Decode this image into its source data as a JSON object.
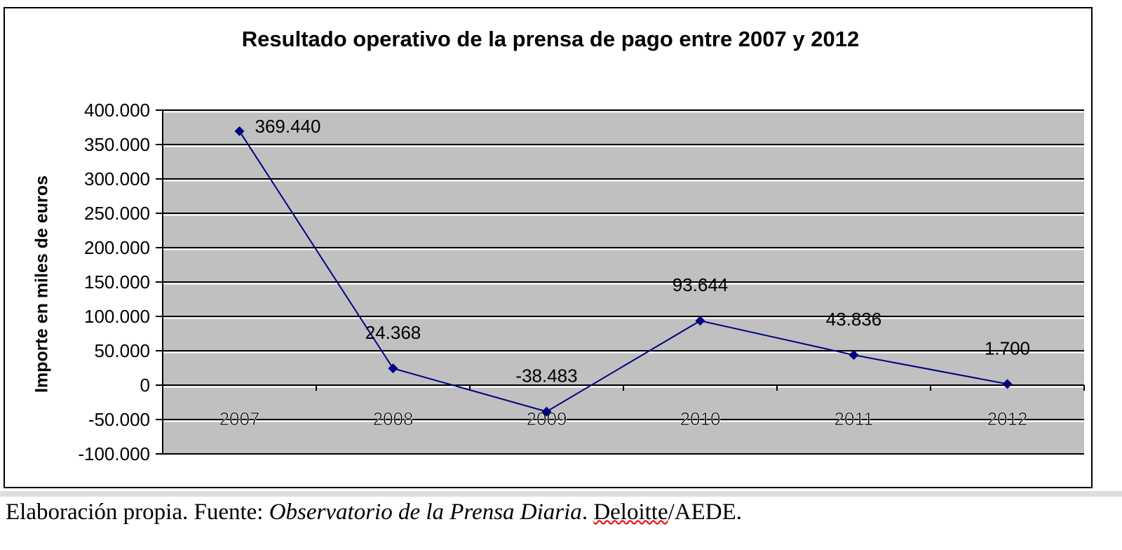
{
  "chart_data": {
    "type": "line",
    "title": "Resultado operativo de la prensa de pago entre 2007 y 2012",
    "xlabel": "",
    "ylabel": "Importe en miles de euros",
    "categories": [
      "2007",
      "2008",
      "2009",
      "2010",
      "2011",
      "2012"
    ],
    "series": [
      {
        "name": "Resultado operativo",
        "values": [
          369440,
          24368,
          -38483,
          93644,
          43836,
          1700
        ]
      }
    ],
    "data_labels": [
      "369.440",
      "24.368",
      "-38.483",
      "93.644",
      "43.836",
      "1.700"
    ],
    "ylim": [
      -100000,
      400000
    ],
    "yticks": [
      400000,
      350000,
      300000,
      250000,
      200000,
      150000,
      100000,
      50000,
      0,
      -50000,
      -100000
    ],
    "ytick_labels": [
      "400.000",
      "350.000",
      "300.000",
      "250.000",
      "200.000",
      "150.000",
      "100.000",
      "50.000",
      "0",
      "-50.000",
      "-100.000"
    ],
    "grid": true,
    "legend": "none",
    "colors": {
      "line": "#000080",
      "plot_bg": "#c0c0c0",
      "grid": "#000000"
    }
  },
  "caption": {
    "prefix": "Elaboración propia. Fuente: ",
    "source_italic": "Observatorio de la Prensa Diaria",
    "sep": ". ",
    "publisher": "Deloitte",
    "suffix": "/AEDE."
  }
}
